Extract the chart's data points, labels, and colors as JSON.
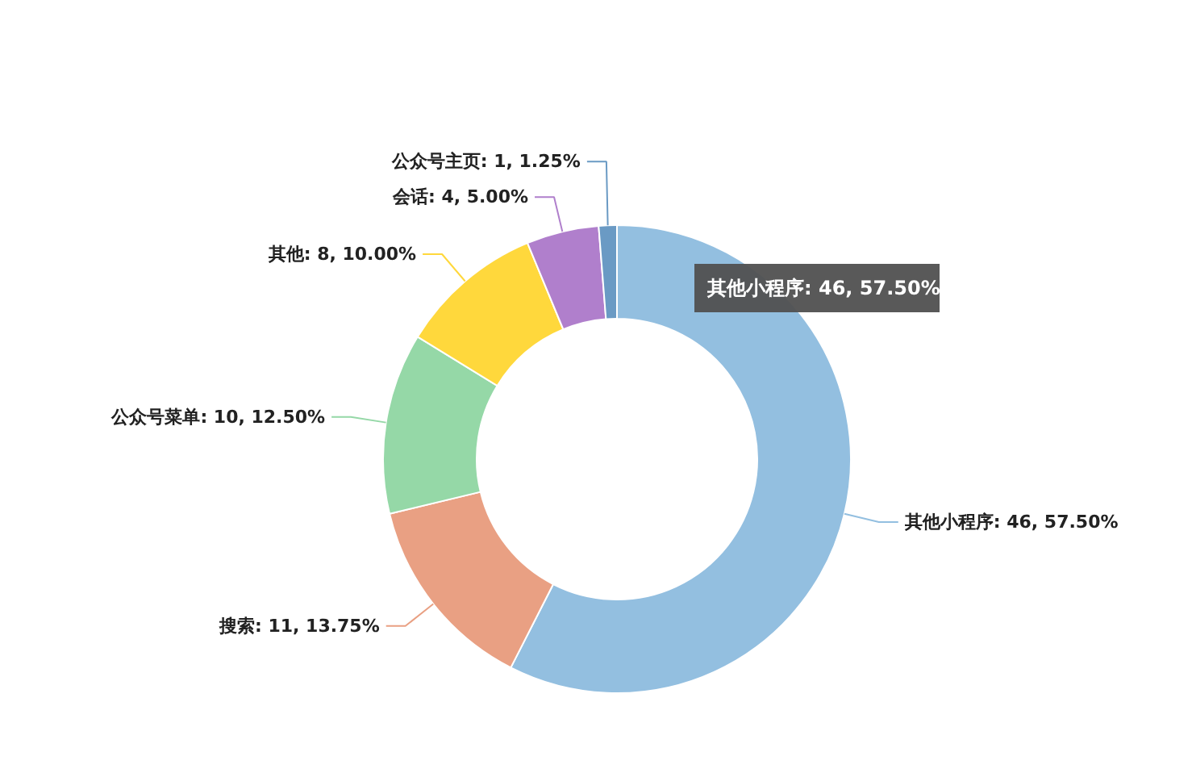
{
  "chart_data": {
    "type": "donut",
    "categories": [
      "其他小程序",
      "搜索",
      "公众号菜单",
      "其他",
      "会话",
      "公众号主页"
    ],
    "values": [
      46,
      11,
      10,
      8,
      4,
      1
    ],
    "colors": [
      "#93bfe0",
      "#e9a083",
      "#95d8a7",
      "#ffd83c",
      "#b07fcc",
      "#6a9ac4"
    ],
    "value_labels": [
      "46, 57.50%",
      "11, 13.75%",
      "10, 12.50%",
      "8, 10.00%",
      "4, 5.00%",
      "1, 1.25%"
    ],
    "annotations": [
      "其他小程序: 46, 57.50%"
    ],
    "legend": false
  }
}
